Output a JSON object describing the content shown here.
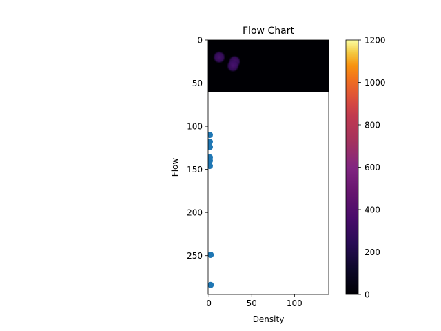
{
  "chart_data": {
    "type": "scatter",
    "title": "Flow Chart",
    "xlabel": "Density",
    "ylabel": "Flow",
    "xlim": [
      -1,
      140
    ],
    "ylim": [
      295,
      0
    ],
    "x_ticks": [
      0,
      50,
      100
    ],
    "y_ticks": [
      0,
      50,
      100,
      150,
      200,
      250
    ],
    "grid": false,
    "legend": "none",
    "heatmap": {
      "x_range": [
        -1,
        140
      ],
      "y_range": [
        0,
        60
      ],
      "background_color": "#000004",
      "blobs": [
        {
          "x": 12,
          "y": 20,
          "intensity": 280
        },
        {
          "x": 30,
          "y": 25,
          "intensity": 380
        },
        {
          "x": 28,
          "y": 30,
          "intensity": 340
        }
      ]
    },
    "series": [
      {
        "color": "#1f77b4",
        "points": [
          {
            "x": 1,
            "y": 110
          },
          {
            "x": 1,
            "y": 118
          },
          {
            "x": 1,
            "y": 124
          },
          {
            "x": 1,
            "y": 136
          },
          {
            "x": 1,
            "y": 140
          },
          {
            "x": 1,
            "y": 146
          },
          {
            "x": 2,
            "y": 249
          },
          {
            "x": 2,
            "y": 284
          }
        ]
      }
    ],
    "colorbar": {
      "colormap": "inferno",
      "min": 0,
      "max": 1200,
      "ticks": [
        0,
        200,
        400,
        600,
        800,
        1000,
        1200
      ]
    }
  }
}
